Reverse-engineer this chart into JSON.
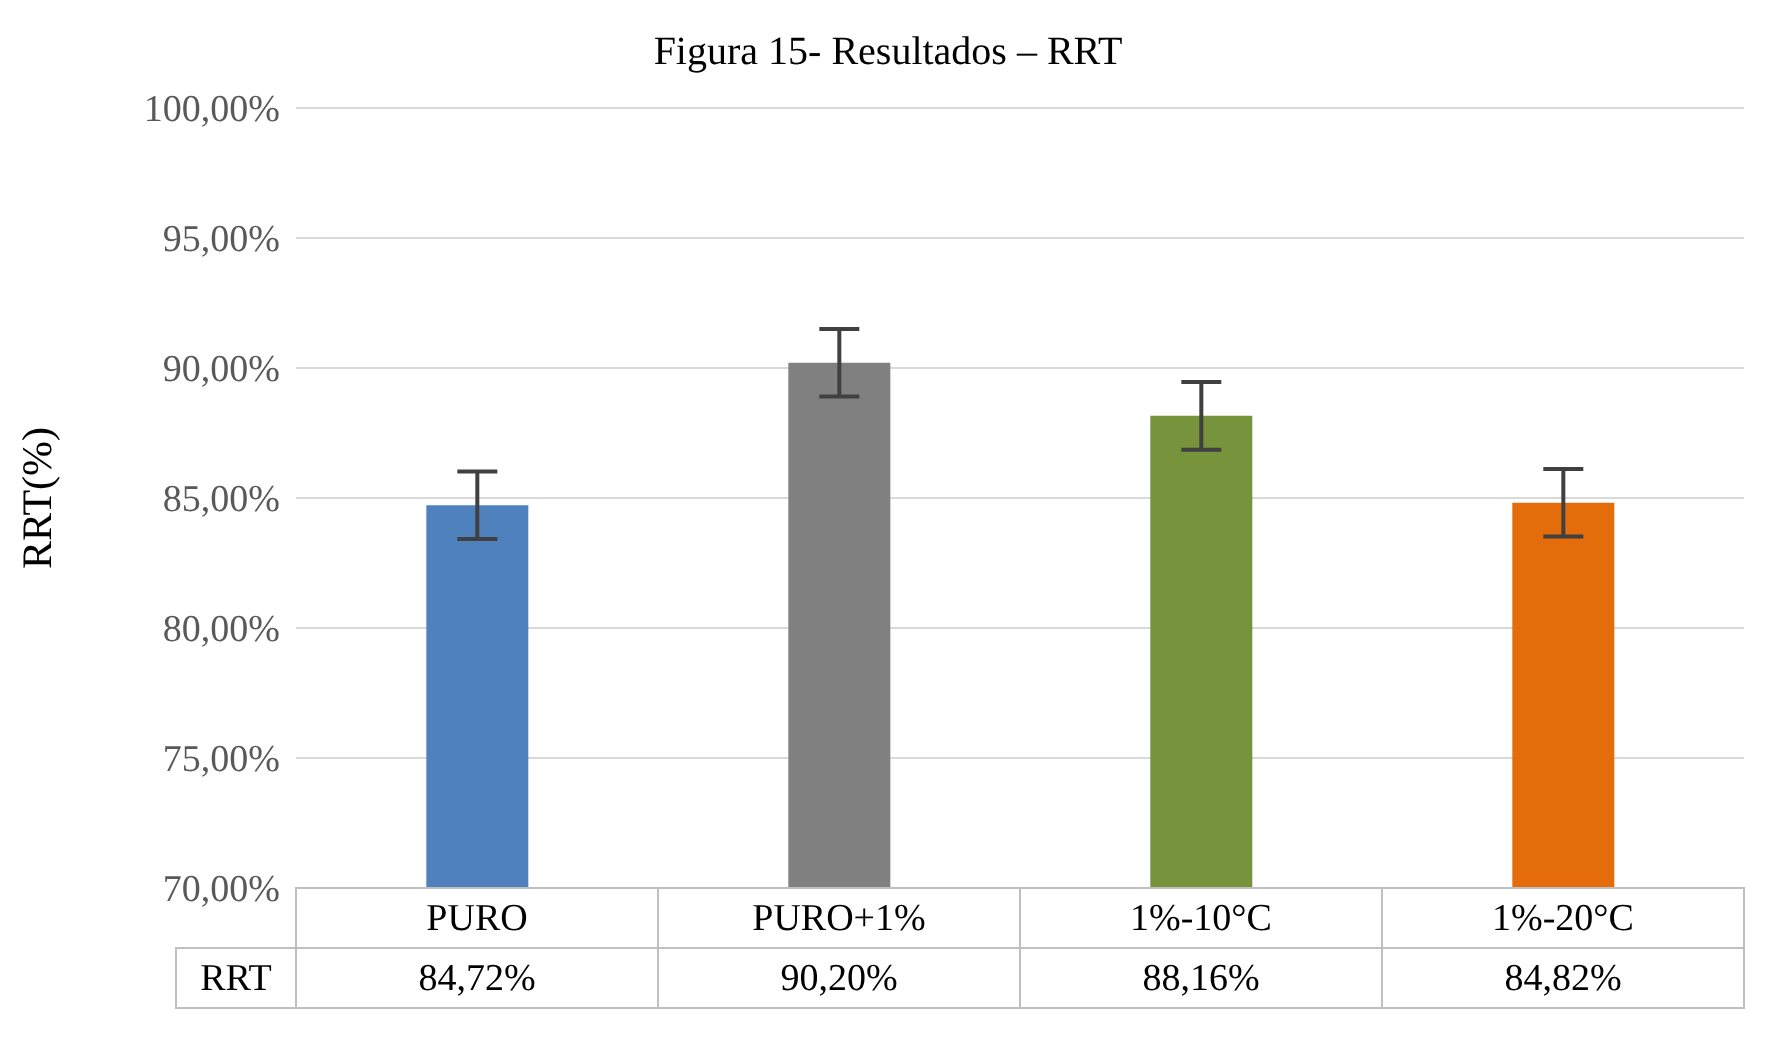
{
  "chart_data": {
    "type": "bar",
    "title": "Figura 15- Resultados – RRT",
    "ylabel": "RRT(%)",
    "categories": [
      "PURO",
      "PURO+1%",
      "1%-10°C",
      "1%-20°C"
    ],
    "series": [
      {
        "name": "RRT",
        "colors": [
          "#4f81bd",
          "#808080",
          "#77933c",
          "#e46c0a"
        ],
        "values": [
          84.72,
          90.2,
          88.16,
          84.82
        ],
        "errors": [
          1.3,
          1.3,
          1.3,
          1.3
        ],
        "value_labels": [
          "84,72%",
          "90,20%",
          "88,16%",
          "84,82%"
        ]
      }
    ],
    "ylim": [
      70,
      100
    ],
    "yticks": [
      {
        "value": 70,
        "label": "70,00%"
      },
      {
        "value": 75,
        "label": "75,00%"
      },
      {
        "value": 80,
        "label": "80,00%"
      },
      {
        "value": 85,
        "label": "85,00%"
      },
      {
        "value": 90,
        "label": "90,00%"
      },
      {
        "value": 95,
        "label": "95,00%"
      },
      {
        "value": 100,
        "label": "100,00%"
      }
    ],
    "grid": "y"
  }
}
